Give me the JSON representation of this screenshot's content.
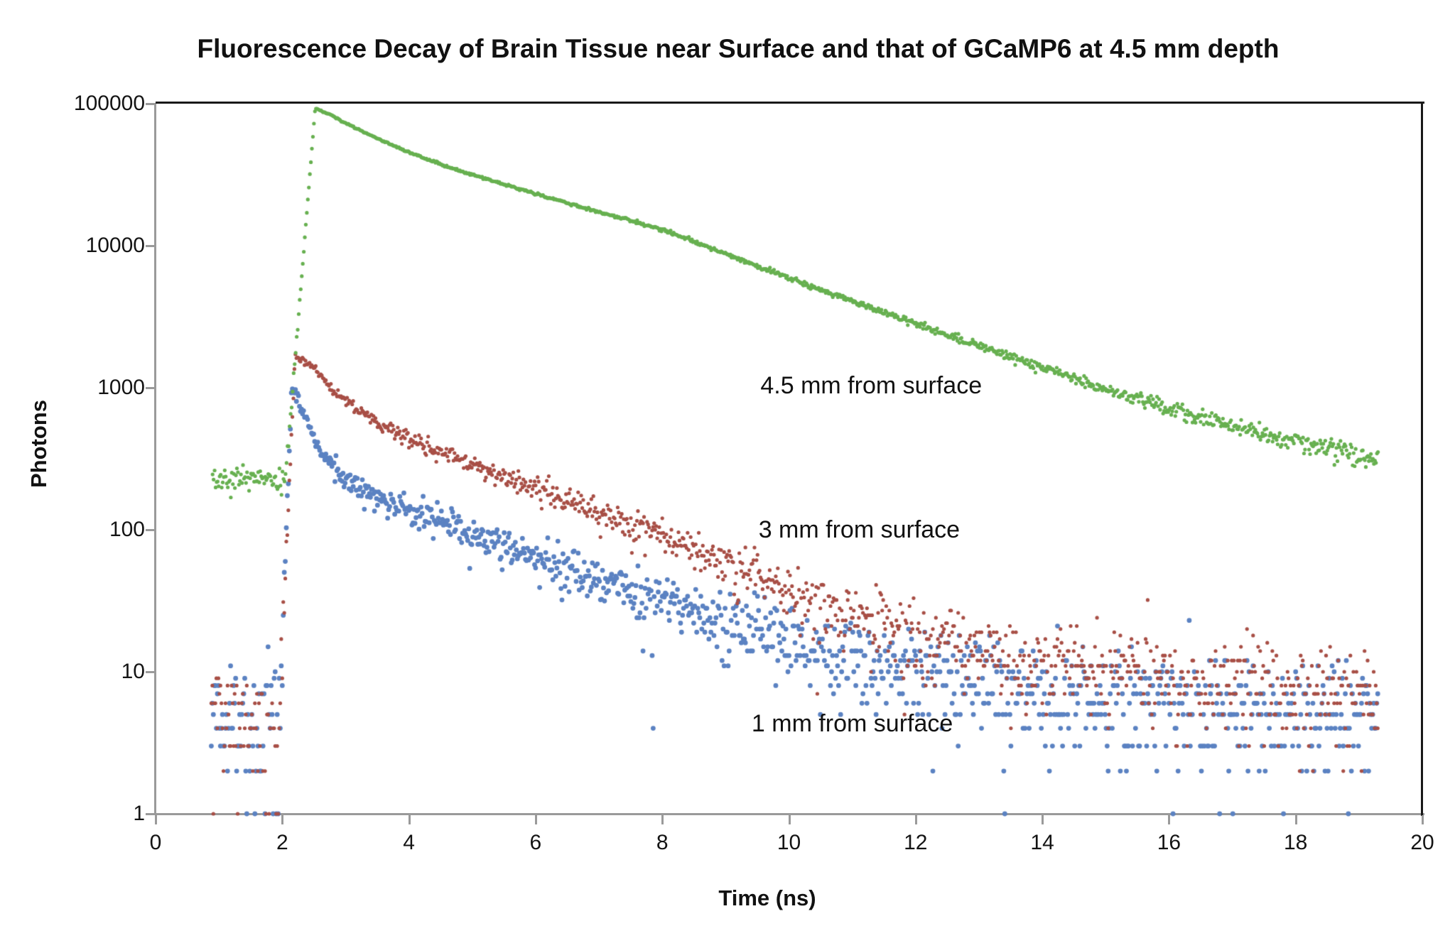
{
  "title": "Fluorescence Decay of Brain Tissue near Surface and that of GCaMP6 at 4.5 mm depth",
  "axes": {
    "x": {
      "label": "Time (ns)",
      "min": 0,
      "max": 20,
      "ticks": [
        0,
        2,
        4,
        6,
        8,
        10,
        12,
        14,
        16,
        18,
        20
      ]
    },
    "y": {
      "label": "Photons",
      "scale": "log",
      "min": 1,
      "max": 100000,
      "ticks": [
        1,
        10,
        100,
        1000,
        10000,
        100000
      ]
    }
  },
  "annotations": [
    {
      "text": "4.5 mm from surface",
      "t": 9.55,
      "photons": 1290
    },
    {
      "text": "3 mm from surface",
      "t": 9.52,
      "photons": 124
    },
    {
      "text": "1 mm from surface",
      "t": 9.41,
      "photons": 5.4
    }
  ],
  "chart_data": {
    "type": "scatter",
    "xlabel": "Time (ns)",
    "ylabel": "Photons",
    "xlim": [
      0,
      20
    ],
    "ylim": [
      1,
      100000
    ],
    "yscale": "log",
    "grid": false,
    "legend": "none (in-plot text annotations)",
    "bin_ns": 0.016,
    "quantization": "photon counts are integers; values below ~30 form discrete horizontal rows; counts of 0 are not plotted",
    "series": [
      {
        "name": "4.5 mm from surface (GCaMP6)",
        "color": "#67b050",
        "marker_radius_px": 2.6,
        "t_start": 0.9,
        "t_end": 19.3,
        "baseline": {
          "t_start": 0.9,
          "t_end": 2.05,
          "mean": 225
        },
        "rise_start": 225,
        "peak": {
          "t": 2.52,
          "photons": 93000
        },
        "decay_anchors": [
          [
            2.52,
            93000
          ],
          [
            2.8,
            82000
          ],
          [
            3,
            73000
          ],
          [
            3.5,
            57000
          ],
          [
            4,
            45500
          ],
          [
            4.5,
            37500
          ],
          [
            5,
            31500
          ],
          [
            5.5,
            27000
          ],
          [
            6,
            23200
          ],
          [
            6.5,
            20000
          ],
          [
            7,
            17300
          ],
          [
            7.5,
            15000
          ],
          [
            8,
            13000
          ],
          [
            8.5,
            10700
          ],
          [
            9,
            8800
          ],
          [
            9.5,
            7200
          ],
          [
            10,
            5950
          ],
          [
            10.5,
            4900
          ],
          [
            11,
            4100
          ],
          [
            11.5,
            3400
          ],
          [
            12,
            2820
          ],
          [
            12.5,
            2350
          ],
          [
            13,
            1960
          ],
          [
            13.5,
            1640
          ],
          [
            14,
            1380
          ],
          [
            14.5,
            1160
          ],
          [
            15,
            980
          ],
          [
            15.5,
            840
          ],
          [
            16,
            720
          ],
          [
            16.5,
            620
          ],
          [
            17,
            540
          ],
          [
            17.5,
            480
          ],
          [
            18,
            425
          ],
          [
            18.5,
            380
          ],
          [
            19,
            330
          ],
          [
            19.3,
            310
          ]
        ],
        "noise_factor": 1.5
      },
      {
        "name": "3 mm from surface",
        "color": "#a84f46",
        "marker_radius_px": 2.6,
        "t_start": 0.88,
        "t_end": 19.3,
        "baseline": {
          "t_start": 0.88,
          "t_end": 1.93,
          "mean": 4.5
        },
        "rise_start": 2.5,
        "peak": {
          "t": 2.2,
          "photons": 1650
        },
        "decay_anchors": [
          [
            2.2,
            1650
          ],
          [
            2.45,
            1450
          ],
          [
            2.8,
            980
          ],
          [
            3,
            800
          ],
          [
            3.5,
            560
          ],
          [
            4,
            440
          ],
          [
            4.5,
            350
          ],
          [
            5,
            290
          ],
          [
            6,
            190
          ],
          [
            7,
            130
          ],
          [
            8,
            90
          ],
          [
            9,
            60
          ],
          [
            10,
            38
          ],
          [
            11,
            26
          ],
          [
            12,
            19
          ],
          [
            13,
            14.5
          ],
          [
            14,
            11.5
          ],
          [
            15,
            10
          ],
          [
            16,
            9
          ],
          [
            17,
            8.2
          ],
          [
            18,
            7.6
          ],
          [
            19.3,
            7.2
          ]
        ],
        "noise_factor": 1.4
      },
      {
        "name": "1 mm from surface",
        "color": "#5b82c2",
        "marker_radius_px": 3.4,
        "t_start": 0.88,
        "t_end": 19.3,
        "baseline": {
          "t_start": 0.88,
          "t_end": 1.93,
          "mean": 4.5
        },
        "rise_start": 2.5,
        "peak": {
          "t": 2.15,
          "photons": 1050
        },
        "decay_anchors": [
          [
            2.15,
            1050
          ],
          [
            2.35,
            640
          ],
          [
            2.6,
            360
          ],
          [
            3,
            225
          ],
          [
            3.5,
            170
          ],
          [
            4,
            140
          ],
          [
            4.5,
            115
          ],
          [
            5,
            95
          ],
          [
            6,
            60
          ],
          [
            7,
            44
          ],
          [
            8,
            32
          ],
          [
            9,
            23
          ],
          [
            10,
            17
          ],
          [
            11,
            13
          ],
          [
            12,
            10.5
          ],
          [
            13,
            8.8
          ],
          [
            14,
            7.6
          ],
          [
            15,
            6.8
          ],
          [
            16,
            6.2
          ],
          [
            17,
            5.8
          ],
          [
            18,
            5.4
          ],
          [
            19.3,
            5.1
          ]
        ],
        "noise_factor": 1.4
      }
    ]
  }
}
